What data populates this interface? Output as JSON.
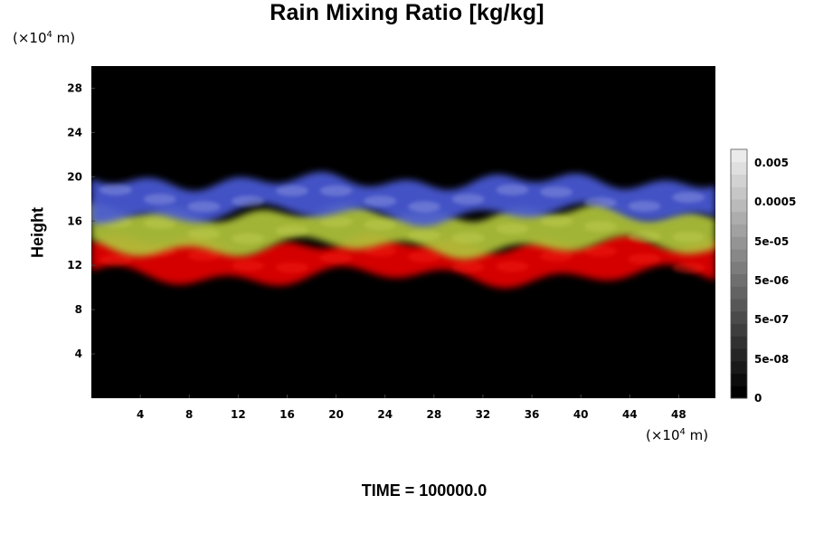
{
  "chart_data": {
    "type": "heatmap",
    "title": "Rain Mixing Ratio [kg/kg]",
    "ylabel": "Height",
    "y_unit": "(×10⁴ m)",
    "x_unit": "(×10⁴ m)",
    "unit_prefix": "(×10",
    "unit_exp": "4",
    "unit_suffix": " m)",
    "x_ticks": [
      4,
      8,
      12,
      16,
      20,
      24,
      28,
      32,
      36,
      40,
      44,
      48
    ],
    "y_ticks": [
      4,
      8,
      12,
      16,
      20,
      24,
      28
    ],
    "xlim": [
      0,
      51
    ],
    "ylim": [
      0,
      30
    ],
    "colorbar": {
      "labels": [
        "0.005",
        "0.0005",
        "5e-05",
        "5e-06",
        "5e-07",
        "5e-08",
        "0"
      ],
      "levels": 20
    },
    "layers": [
      {
        "color": "#e60000",
        "y_top": 14.0,
        "y_bottom": 11.0
      },
      {
        "color": "#b0c43a",
        "y_top": 16.8,
        "y_bottom": 13.6
      },
      {
        "color": "#4a5ad6",
        "y_top": 19.6,
        "y_bottom": 16.6
      }
    ]
  },
  "footer": {
    "time_label": "TIME = 100000.0"
  },
  "colors": {
    "background": "#000000",
    "rain_low": "#e60000",
    "rain_mid": "#b0c43a",
    "rain_high": "#4a5ad6"
  }
}
